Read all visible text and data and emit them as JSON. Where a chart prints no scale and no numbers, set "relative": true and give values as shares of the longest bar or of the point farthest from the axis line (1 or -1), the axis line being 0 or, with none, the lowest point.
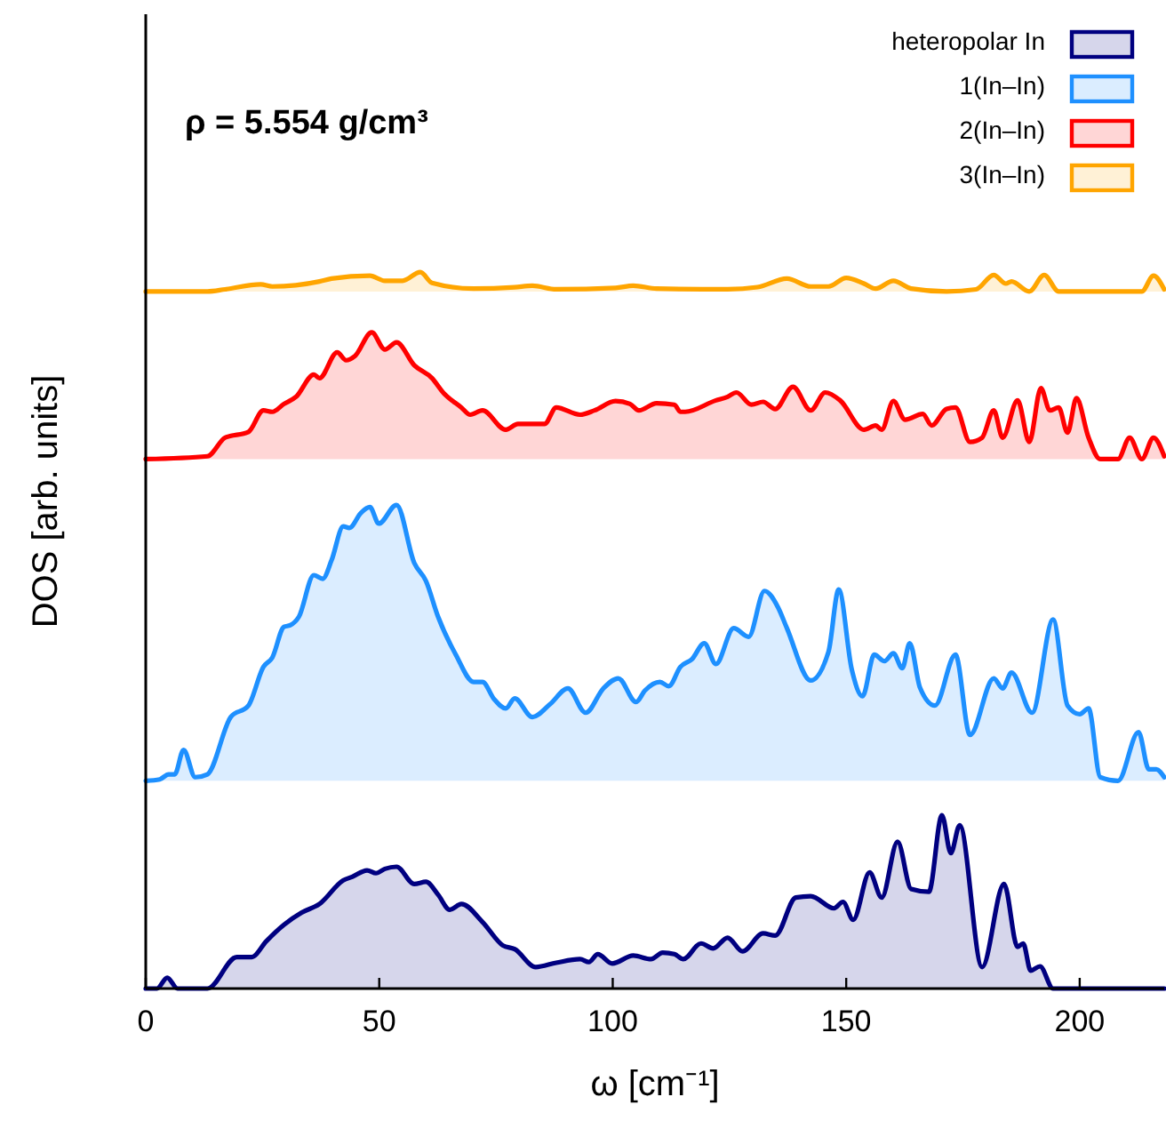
{
  "chart_data": {
    "type": "area",
    "relative": true,
    "xlabel": "ω [cm⁻¹]",
    "ylabel": "DOS [arb. units]",
    "xlim": [
      0,
      218.1
    ],
    "xticks": [
      0,
      50,
      100,
      150,
      200
    ],
    "legend": "top right",
    "grid": false,
    "annotations": [
      "ρ = 5.554 g/cm³"
    ],
    "series": [
      {
        "name": "heteropolar In",
        "color": "#000080",
        "x": [
          0,
          2.4,
          4.6,
          6.8,
          10.6,
          13.2,
          19.5,
          22.7,
          25.8,
          29.6,
          33.4,
          37.2,
          42.3,
          44.2,
          47.4,
          49.3,
          51.2,
          53.7,
          57.5,
          60.0,
          62.6,
          65.1,
          67.6,
          72.1,
          76.5,
          79.0,
          83.5,
          87.9,
          93.0,
          94.9,
          96.8,
          99.9,
          104.4,
          108.2,
          110.7,
          113.2,
          115.1,
          118.9,
          121.5,
          124.6,
          127.8,
          132.2,
          134.8,
          139.2,
          142.4,
          147.4,
          149.3,
          151.5,
          155.0,
          157.6,
          161.0,
          163.9,
          167.7,
          170.5,
          172.4,
          174.3,
          179.1,
          183.8,
          186.7,
          187.9,
          189.5,
          191.5,
          194.3,
          218.1
        ],
        "values": [
          0,
          0,
          0.015,
          0,
          0,
          0,
          0.044,
          0.044,
          0.066,
          0.089,
          0.106,
          0.118,
          0.151,
          0.156,
          0.165,
          0.161,
          0.167,
          0.17,
          0.146,
          0.149,
          0.131,
          0.11,
          0.118,
          0.093,
          0.06,
          0.055,
          0.03,
          0.036,
          0.041,
          0.037,
          0.048,
          0.035,
          0.046,
          0.041,
          0.05,
          0.048,
          0.041,
          0.063,
          0.056,
          0.071,
          0.052,
          0.077,
          0.074,
          0.127,
          0.129,
          0.112,
          0.121,
          0.096,
          0.162,
          0.127,
          0.205,
          0.139,
          0.135,
          0.242,
          0.189,
          0.228,
          0.03,
          0.146,
          0.058,
          0.063,
          0.025,
          0.031,
          0,
          0
        ]
      },
      {
        "name": "1(In–In)",
        "color": "#1e90ff",
        "x": [
          0,
          3.0,
          4.9,
          6.2,
          8.1,
          10.6,
          13.2,
          18.2,
          22.0,
          25.2,
          27.1,
          29.6,
          30.9,
          32.8,
          36.0,
          37.9,
          39.8,
          42.3,
          43.6,
          46.1,
          48.0,
          49.9,
          53.7,
          57.5,
          60.0,
          62.6,
          66.4,
          70.2,
          72.1,
          74.6,
          77.1,
          79.0,
          82.8,
          86.6,
          90.4,
          94.2,
          98.0,
          101.2,
          105.0,
          106.9,
          110.1,
          112.0,
          114.5,
          117.0,
          119.6,
          122.1,
          125.9,
          129.1,
          132.5,
          135.4,
          137.3,
          142.4,
          146.2,
          148.4,
          151.2,
          153.5,
          156.0,
          158.2,
          160.1,
          162.0,
          163.6,
          165.8,
          169.0,
          173.4,
          176.5,
          181.6,
          183.5,
          185.4,
          189.8,
          194.3,
          197.4,
          200.0,
          201.9,
          204.4,
          208.2,
          212.6,
          214.8,
          216.4,
          218.1
        ],
        "values": [
          0.29,
          0.292,
          0.299,
          0.299,
          0.333,
          0.295,
          0.299,
          0.379,
          0.395,
          0.449,
          0.462,
          0.505,
          0.507,
          0.519,
          0.577,
          0.572,
          0.598,
          0.645,
          0.643,
          0.664,
          0.672,
          0.649,
          0.675,
          0.594,
          0.569,
          0.519,
          0.466,
          0.428,
          0.428,
          0.404,
          0.391,
          0.405,
          0.379,
          0.397,
          0.419,
          0.385,
          0.419,
          0.433,
          0.4,
          0.416,
          0.428,
          0.422,
          0.449,
          0.46,
          0.482,
          0.453,
          0.503,
          0.491,
          0.555,
          0.532,
          0.503,
          0.43,
          0.47,
          0.557,
          0.445,
          0.408,
          0.466,
          0.457,
          0.468,
          0.447,
          0.482,
          0.42,
          0.395,
          0.466,
          0.354,
          0.433,
          0.419,
          0.441,
          0.385,
          0.515,
          0.395,
          0.383,
          0.391,
          0.295,
          0.29,
          0.358,
          0.306,
          0.306,
          0.295
        ]
      },
      {
        "name": "2(In–In)",
        "color": "#ff0000",
        "x": [
          0,
          13.2,
          17.0,
          22.0,
          25.2,
          27.1,
          29.6,
          32.2,
          36.0,
          37.2,
          41.0,
          42.9,
          44.8,
          48.4,
          51.2,
          53.7,
          57.5,
          61.3,
          63.8,
          67.6,
          69.5,
          72.1,
          77.1,
          79.7,
          85.4,
          87.9,
          93.0,
          96.1,
          100.6,
          103.7,
          105.6,
          109.4,
          113.2,
          114.5,
          115.5,
          122.1,
          124.6,
          126.5,
          129.7,
          132.2,
          134.8,
          138.6,
          142.4,
          145.5,
          148.7,
          153.8,
          156.3,
          157.6,
          160.1,
          162.6,
          166.4,
          168.3,
          171.5,
          173.4,
          176.5,
          179.1,
          181.6,
          183.5,
          186.7,
          189.2,
          191.7,
          193.6,
          195.5,
          197.4,
          199.3,
          201.9,
          204.4,
          208.2,
          210.7,
          213.3,
          215.8,
          218.1
        ],
        "values": [
          0.739,
          0.743,
          0.769,
          0.777,
          0.807,
          0.805,
          0.816,
          0.826,
          0.857,
          0.852,
          0.888,
          0.877,
          0.883,
          0.916,
          0.892,
          0.902,
          0.87,
          0.852,
          0.831,
          0.811,
          0.801,
          0.807,
          0.78,
          0.788,
          0.788,
          0.811,
          0.801,
          0.807,
          0.82,
          0.816,
          0.807,
          0.817,
          0.815,
          0.805,
          0.805,
          0.821,
          0.826,
          0.832,
          0.815,
          0.819,
          0.809,
          0.84,
          0.807,
          0.832,
          0.821,
          0.78,
          0.786,
          0.78,
          0.82,
          0.794,
          0.802,
          0.786,
          0.809,
          0.811,
          0.763,
          0.769,
          0.807,
          0.769,
          0.821,
          0.763,
          0.838,
          0.807,
          0.811,
          0.776,
          0.824,
          0.769,
          0.739,
          0.739,
          0.769,
          0.739,
          0.769,
          0.743
        ]
      },
      {
        "name": "3(In–In)",
        "color": "#ffa500",
        "x": [
          0,
          13.2,
          17.0,
          24.6,
          27.1,
          37.2,
          39.8,
          48.0,
          51.2,
          55.0,
          58.8,
          61.3,
          70.2,
          79.0,
          82.8,
          87.9,
          100.6,
          104.4,
          109.4,
          124.6,
          131.0,
          137.3,
          142.4,
          146.2,
          150.0,
          153.8,
          156.3,
          160.1,
          163.9,
          171.5,
          177.8,
          181.6,
          184.2,
          185.4,
          189.2,
          192.4,
          195.5,
          213.3,
          215.8,
          218.1
        ],
        "values": [
          0.973,
          0.973,
          0.976,
          0.983,
          0.98,
          0.987,
          0.991,
          0.995,
          0.988,
          0.988,
          1.0,
          0.985,
          0.977,
          0.979,
          0.981,
          0.976,
          0.978,
          0.981,
          0.977,
          0.976,
          0.979,
          0.991,
          0.98,
          0.98,
          0.992,
          0.984,
          0.977,
          0.988,
          0.977,
          0.973,
          0.976,
          0.996,
          0.984,
          0.987,
          0.973,
          0.996,
          0.973,
          0.973,
          0.995,
          0.976
        ]
      }
    ]
  }
}
